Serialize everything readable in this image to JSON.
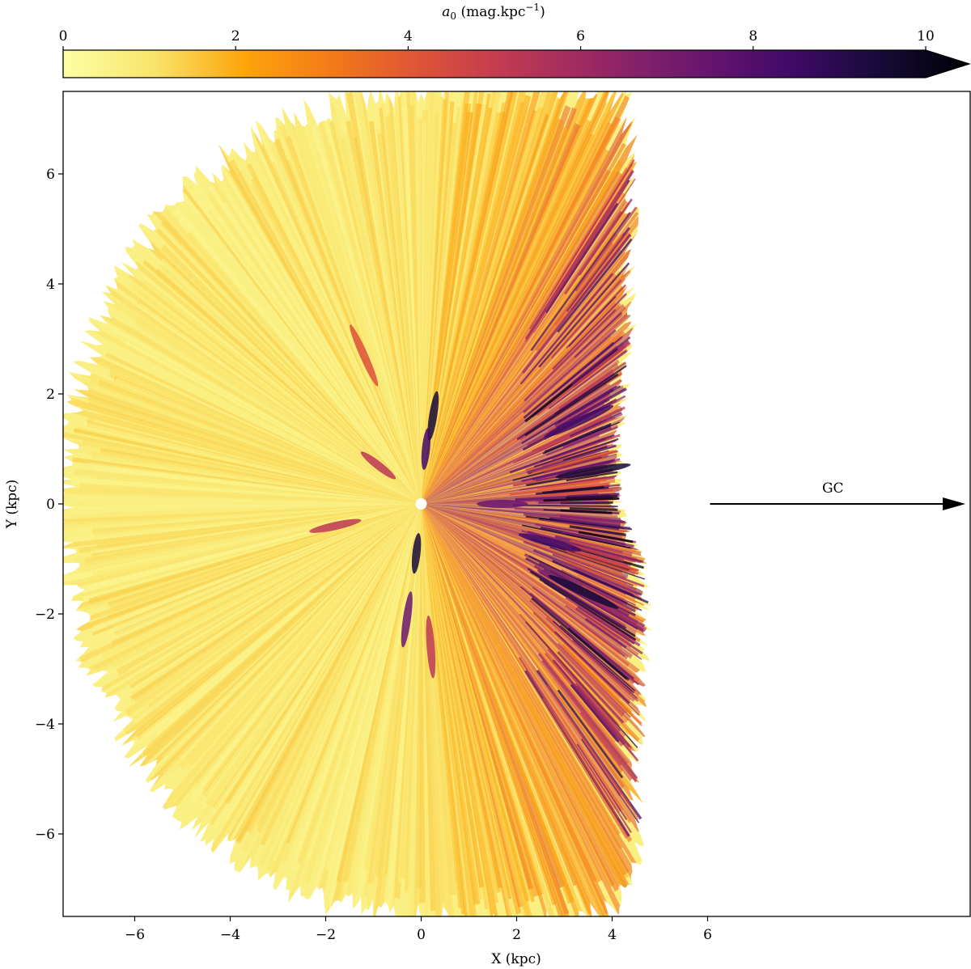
{
  "chart_data": {
    "type": "heatmap",
    "title": "",
    "xlabel": "X (kpc)",
    "ylabel": "Y (kpc)",
    "xlim": [
      -7.5,
      11.5
    ],
    "ylim": [
      -7.5,
      7.5
    ],
    "xticks": [
      -6,
      -4,
      -2,
      0,
      2,
      4,
      6
    ],
    "yticks": [
      -6,
      -4,
      -2,
      0,
      2,
      4,
      6
    ],
    "grid": false,
    "colorbar": {
      "label_main": "a",
      "label_sub": "0",
      "label_unit": " (mag.kpc",
      "label_exp": "−1",
      "label_close": ")",
      "min": 0,
      "max": 10,
      "ticks": [
        0,
        2,
        4,
        6,
        8,
        10
      ],
      "extend": "max",
      "colormap": "inferno_r",
      "colors": [
        "#fcffa4",
        "#f9e46b",
        "#fca50a",
        "#f37819",
        "#dd513a",
        "#bc3754",
        "#932667",
        "#6a176e",
        "#420a68",
        "#160b39",
        "#000004"
      ]
    },
    "annotation": {
      "text": "GC",
      "arrow_start": [
        6.05,
        0
      ],
      "arrow_end": [
        11.4,
        0
      ]
    },
    "extinction_field": {
      "center": [
        0,
        0
      ],
      "radial_sectors_deg_deg_note": "",
      "outer_edge_kpc": [
        {
          "angle_deg": 0,
          "r": 4.1
        },
        {
          "angle_deg": 15,
          "r": 4.2
        },
        {
          "angle_deg": 30,
          "r": 4.9
        },
        {
          "angle_deg": 45,
          "r": 6.1
        },
        {
          "angle_deg": 60,
          "r": 8.5
        },
        {
          "angle_deg": 90,
          "r": 7.5
        },
        {
          "angle_deg": 180,
          "r": 7.5
        },
        {
          "angle_deg": 270,
          "r": 7.5
        },
        {
          "angle_deg": 300,
          "r": 8.5
        },
        {
          "angle_deg": 315,
          "r": 6.3
        },
        {
          "angle_deg": 330,
          "r": 5.3
        },
        {
          "angle_deg": 345,
          "r": 4.8
        }
      ],
      "dense_clumps": [
        {
          "x": 0.25,
          "y": 1.6,
          "a0": 9.0
        },
        {
          "x": 0.1,
          "y": 1.0,
          "a0": 8.0
        },
        {
          "x": -0.1,
          "y": -0.9,
          "a0": 9.0
        },
        {
          "x": -0.3,
          "y": -2.1,
          "a0": 7.0
        },
        {
          "x": 3.3,
          "y": 1.5,
          "a0": 8.0
        },
        {
          "x": 3.6,
          "y": 0.6,
          "a0": 9.0
        },
        {
          "x": 3.4,
          "y": -1.6,
          "a0": 9.0
        },
        {
          "x": 2.7,
          "y": -0.7,
          "a0": 8.0
        },
        {
          "x": 1.7,
          "y": 0.0,
          "a0": 7.0
        },
        {
          "x": -0.9,
          "y": 0.7,
          "a0": 5.0
        },
        {
          "x": -1.8,
          "y": -0.4,
          "a0": 5.0
        },
        {
          "x": -1.2,
          "y": 2.7,
          "a0": 4.0
        },
        {
          "x": 0.2,
          "y": -2.6,
          "a0": 5.0
        }
      ]
    }
  }
}
